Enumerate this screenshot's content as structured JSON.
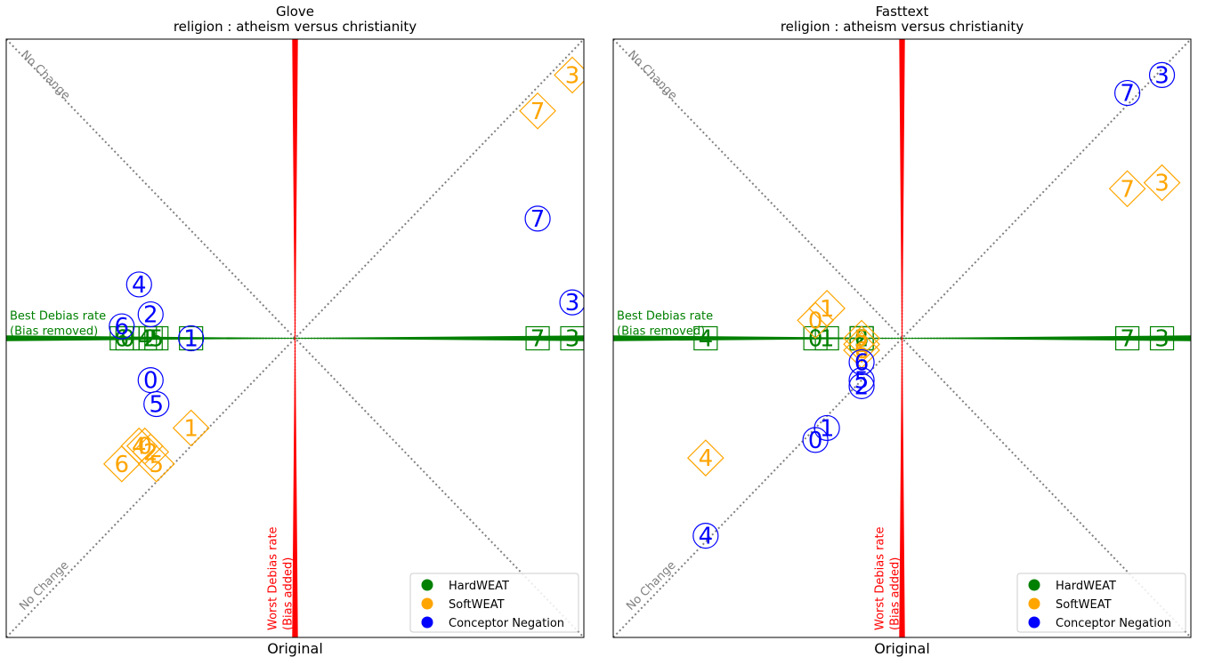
{
  "chart_data": [
    {
      "type": "scatter",
      "title": "Glove",
      "subtitle": "religion : atheism versus christianity",
      "xlabel": "Original",
      "ylabel": "",
      "xlim": [
        0,
        1
      ],
      "ylim": [
        0,
        1
      ],
      "grid": false,
      "legend_position": "bottom-right",
      "annotations": {
        "best_rate": "Best Debias rate",
        "best_note": "(Bias removed)",
        "worst_rate": "Worst Debias rate",
        "worst_note": "(Bias added)",
        "no_change": "No Change"
      },
      "series": [
        {
          "name": "HardWEAT",
          "color": "#008000",
          "marker": "square",
          "points": [
            {
              "label": "0",
              "x": 0.21,
              "y": 0.5
            },
            {
              "label": "1",
              "x": 0.32,
              "y": 0.5
            },
            {
              "label": "2",
              "x": 0.25,
              "y": 0.5
            },
            {
              "label": "3",
              "x": 0.98,
              "y": 0.5
            },
            {
              "label": "4",
              "x": 0.24,
              "y": 0.5
            },
            {
              "label": "5",
              "x": 0.26,
              "y": 0.5
            },
            {
              "label": "6",
              "x": 0.2,
              "y": 0.5
            },
            {
              "label": "7",
              "x": 0.92,
              "y": 0.5
            }
          ]
        },
        {
          "name": "SoftWEAT",
          "color": "#ffa500",
          "marker": "diamond",
          "points": [
            {
              "label": "0",
              "x": 0.24,
              "y": 0.32
            },
            {
              "label": "1",
              "x": 0.32,
              "y": 0.35
            },
            {
              "label": "2",
              "x": 0.25,
              "y": 0.31
            },
            {
              "label": "3",
              "x": 0.98,
              "y": 0.94
            },
            {
              "label": "4",
              "x": 0.23,
              "y": 0.32
            },
            {
              "label": "5",
              "x": 0.26,
              "y": 0.29
            },
            {
              "label": "6",
              "x": 0.2,
              "y": 0.29
            },
            {
              "label": "7",
              "x": 0.92,
              "y": 0.88
            }
          ]
        },
        {
          "name": "Conceptor Negation",
          "color": "#0000ff",
          "marker": "circle",
          "points": [
            {
              "label": "0",
              "x": 0.25,
              "y": 0.43
            },
            {
              "label": "1",
              "x": 0.32,
              "y": 0.5
            },
            {
              "label": "2",
              "x": 0.25,
              "y": 0.54
            },
            {
              "label": "3",
              "x": 0.98,
              "y": 0.56
            },
            {
              "label": "4",
              "x": 0.23,
              "y": 0.59
            },
            {
              "label": "5",
              "x": 0.26,
              "y": 0.39
            },
            {
              "label": "6",
              "x": 0.2,
              "y": 0.52
            },
            {
              "label": "7",
              "x": 0.92,
              "y": 0.7
            }
          ]
        }
      ]
    },
    {
      "type": "scatter",
      "title": "Fasttext",
      "subtitle": "religion : atheism versus christianity",
      "xlabel": "Original",
      "ylabel": "",
      "xlim": [
        0,
        1
      ],
      "ylim": [
        0,
        1
      ],
      "grid": false,
      "legend_position": "bottom-right",
      "annotations": {
        "best_rate": "Best Debias rate",
        "best_note": "(Bias removed)",
        "worst_rate": "Worst Debias rate",
        "worst_note": "(Bias added)",
        "no_change": "No Change"
      },
      "series": [
        {
          "name": "HardWEAT",
          "color": "#008000",
          "marker": "square",
          "points": [
            {
              "label": "0",
              "x": 0.35,
              "y": 0.5
            },
            {
              "label": "1",
              "x": 0.37,
              "y": 0.5
            },
            {
              "label": "2",
              "x": 0.43,
              "y": 0.5
            },
            {
              "label": "3",
              "x": 0.95,
              "y": 0.5
            },
            {
              "label": "4",
              "x": 0.16,
              "y": 0.5
            },
            {
              "label": "5",
              "x": 0.43,
              "y": 0.5
            },
            {
              "label": "6",
              "x": 0.43,
              "y": 0.5
            },
            {
              "label": "7",
              "x": 0.89,
              "y": 0.5
            }
          ]
        },
        {
          "name": "SoftWEAT",
          "color": "#ffa500",
          "marker": "diamond",
          "points": [
            {
              "label": "0",
              "x": 0.35,
              "y": 0.53
            },
            {
              "label": "1",
              "x": 0.37,
              "y": 0.55
            },
            {
              "label": "2",
              "x": 0.43,
              "y": 0.49
            },
            {
              "label": "3",
              "x": 0.95,
              "y": 0.76
            },
            {
              "label": "4",
              "x": 0.16,
              "y": 0.3
            },
            {
              "label": "5",
              "x": 0.43,
              "y": 0.5
            },
            {
              "label": "6",
              "x": 0.43,
              "y": 0.48
            },
            {
              "label": "7",
              "x": 0.89,
              "y": 0.75
            }
          ]
        },
        {
          "name": "Conceptor Negation",
          "color": "#0000ff",
          "marker": "circle",
          "points": [
            {
              "label": "0",
              "x": 0.35,
              "y": 0.33
            },
            {
              "label": "1",
              "x": 0.37,
              "y": 0.35
            },
            {
              "label": "2",
              "x": 0.43,
              "y": 0.42
            },
            {
              "label": "3",
              "x": 0.95,
              "y": 0.94
            },
            {
              "label": "4",
              "x": 0.16,
              "y": 0.17
            },
            {
              "label": "5",
              "x": 0.43,
              "y": 0.43
            },
            {
              "label": "6",
              "x": 0.43,
              "y": 0.46
            },
            {
              "label": "7",
              "x": 0.89,
              "y": 0.91
            }
          ]
        }
      ]
    }
  ]
}
